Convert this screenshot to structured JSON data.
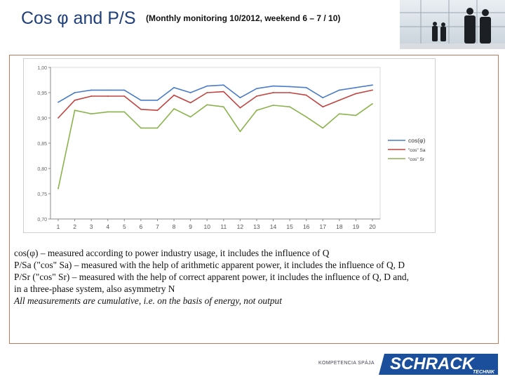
{
  "slide": {
    "title": "Cos φ and P/S",
    "subtitle": "(Monthly monitoring 10/2012, weekend 6 – 7 / 10)"
  },
  "description": {
    "line1": "cos(φ) – measured according to power industry usage, it includes the influence of Q",
    "line2": "P/Sa (\"cos\" Sa) – measured with the help of arithmetic apparent power, it includes the influence of Q, D",
    "line3": "P/Sr (\"cos\" Sr) – measured with the help of correct apparent power, it includes the influence of Q, D and,",
    "line4": "in a three-phase system, also asymmetry N",
    "line5": "All measurements are cumulative, i.e. on the basis of energy, not output"
  },
  "footer": {
    "tagline": "KOMPETENCIA SPÁJA",
    "logo_main": "SCHRACK",
    "logo_sub": "TECHNIK",
    "logo_color": "#1b4f9c"
  },
  "chart_data": {
    "type": "line",
    "title": "",
    "xlabel": "",
    "ylabel": "",
    "x": [
      1,
      2,
      3,
      4,
      5,
      6,
      7,
      8,
      9,
      10,
      11,
      12,
      13,
      14,
      15,
      16,
      17,
      18,
      19,
      20
    ],
    "x_tick_labels": [
      "1",
      "2",
      "3",
      "4",
      "5",
      "6",
      "7",
      "8",
      "9",
      "10",
      "11",
      "12",
      "13",
      "14",
      "15",
      "16",
      "17",
      "18",
      "19",
      "20"
    ],
    "ylim": [
      0.7,
      1.0
    ],
    "y_ticks": [
      0.7,
      0.75,
      0.8,
      0.85,
      0.9,
      0.95,
      1.0
    ],
    "y_tick_labels": [
      "0,70",
      "0,75",
      "0,80",
      "0,85",
      "0,90",
      "0,95",
      "1,00"
    ],
    "grid": false,
    "legend_position": "right",
    "series": [
      {
        "name": "cos(φ)",
        "color": "#4a7cc7",
        "values": [
          0.931,
          0.95,
          0.955,
          0.955,
          0.955,
          0.935,
          0.935,
          0.96,
          0.95,
          0.963,
          0.965,
          0.94,
          0.958,
          0.963,
          0.962,
          0.96,
          0.94,
          0.955,
          0.96,
          0.965
        ]
      },
      {
        "name": "\"cos\" Sa",
        "color": "#c0443f",
        "values": [
          0.9,
          0.935,
          0.943,
          0.943,
          0.943,
          0.917,
          0.915,
          0.945,
          0.93,
          0.95,
          0.952,
          0.92,
          0.943,
          0.95,
          0.95,
          0.945,
          0.922,
          0.935,
          0.948,
          0.955
        ]
      },
      {
        "name": "\"cos\" Sr",
        "color": "#8bb34c",
        "values": [
          0.76,
          0.915,
          0.908,
          0.912,
          0.912,
          0.88,
          0.88,
          0.918,
          0.902,
          0.926,
          0.922,
          0.873,
          0.915,
          0.925,
          0.922,
          0.902,
          0.88,
          0.908,
          0.905,
          0.928
        ]
      }
    ]
  }
}
